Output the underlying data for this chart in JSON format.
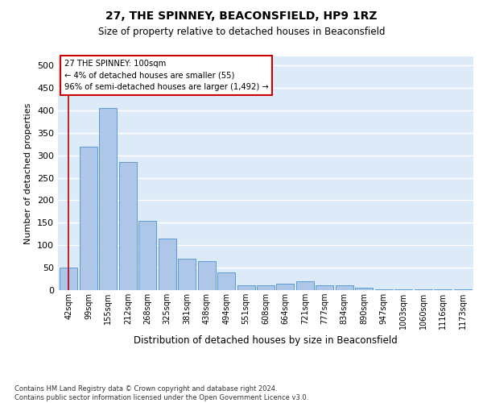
{
  "title1": "27, THE SPINNEY, BEACONSFIELD, HP9 1RZ",
  "title2": "Size of property relative to detached houses in Beaconsfield",
  "xlabel": "Distribution of detached houses by size in Beaconsfield",
  "ylabel": "Number of detached properties",
  "footnote": "Contains HM Land Registry data © Crown copyright and database right 2024.\nContains public sector information licensed under the Open Government Licence v3.0.",
  "categories": [
    "42sqm",
    "99sqm",
    "155sqm",
    "212sqm",
    "268sqm",
    "325sqm",
    "381sqm",
    "438sqm",
    "494sqm",
    "551sqm",
    "608sqm",
    "664sqm",
    "721sqm",
    "777sqm",
    "834sqm",
    "890sqm",
    "947sqm",
    "1003sqm",
    "1060sqm",
    "1116sqm",
    "1173sqm"
  ],
  "values": [
    50,
    320,
    405,
    285,
    155,
    115,
    70,
    65,
    40,
    10,
    10,
    15,
    20,
    10,
    10,
    5,
    2,
    2,
    2,
    2,
    2
  ],
  "bar_color": "#aec6e8",
  "bar_edge_color": "#5b9bd5",
  "annotation_text_line1": "27 THE SPINNEY: 100sqm",
  "annotation_text_line2": "← 4% of detached houses are smaller (55)",
  "annotation_text_line3": "96% of semi-detached houses are larger (1,492) →",
  "vline_color": "#c00000",
  "background_color": "#ddeaf8",
  "grid_color": "#ffffff",
  "ylim": [
    0,
    520
  ],
  "yticks": [
    0,
    50,
    100,
    150,
    200,
    250,
    300,
    350,
    400,
    450,
    500
  ]
}
